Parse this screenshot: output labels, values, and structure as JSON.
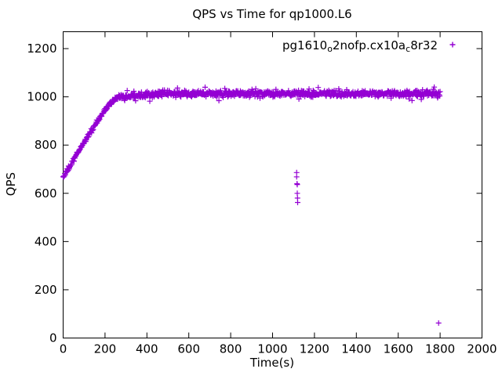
{
  "title": "QPS vs Time for qp1000.L6",
  "axes": {
    "xlabel": "Time(s)",
    "ylabel": "QPS"
  },
  "legend": {
    "label_plain": "pg1610_o2nofp.cx10a_c8r32",
    "segments": [
      {
        "text": "pg1610",
        "sub": false
      },
      {
        "text": "o",
        "sub": true
      },
      {
        "text": "2nofp.cx10a",
        "sub": false
      },
      {
        "text": "c",
        "sub": true
      },
      {
        "text": "8r32",
        "sub": false
      }
    ]
  },
  "chart_data": {
    "type": "scatter",
    "title": "QPS vs Time for qp1000.L6",
    "xlabel": "Time(s)",
    "ylabel": "QPS",
    "xlim": [
      0,
      2000
    ],
    "ylim": [
      0,
      1270
    ],
    "x_ticks": [
      0,
      200,
      400,
      600,
      800,
      1000,
      1200,
      1400,
      1600,
      1800,
      2000
    ],
    "y_ticks": [
      0,
      200,
      400,
      600,
      800,
      1000,
      1200
    ],
    "grid": false,
    "legend_position": "top-right-inside",
    "marker": "plus",
    "color": "#9400D3",
    "series": [
      {
        "name": "pg1610_o2nofp.cx10a_c8r32",
        "summary": "QPS ramps from ~670 at t=0 up to ~1000 by t=250s, then holds a noisy plateau around 1000-1030 QPS through t=1800s. Outlier dip cluster near t=1120s down to ~560 QPS, and one isolated point near t=1795s at ~60 QPS.",
        "generation": {
          "seed": 1234,
          "t_start": 0,
          "t_end": 1800,
          "t_step": 2,
          "ramp_anchors": [
            [
              0,
              668
            ],
            [
              40,
              722
            ],
            [
              80,
              784
            ],
            [
              120,
              840
            ],
            [
              160,
              892
            ],
            [
              200,
              946
            ],
            [
              230,
              978
            ],
            [
              255,
              995
            ],
            [
              270,
              1000
            ]
          ],
          "plateau": {
            "from": 270,
            "settle": 420,
            "settle_start_qps": 998,
            "mean_qps": 1013,
            "noise": 19,
            "ramp_noise": 14
          },
          "outliers": [
            [
              1115,
              686
            ],
            [
              1115,
              668
            ],
            [
              1117,
              640
            ],
            [
              1118,
              636
            ],
            [
              1118,
              600
            ],
            [
              1119,
              580
            ],
            [
              1120,
              562
            ],
            [
              1793,
              62
            ]
          ]
        }
      }
    ]
  }
}
